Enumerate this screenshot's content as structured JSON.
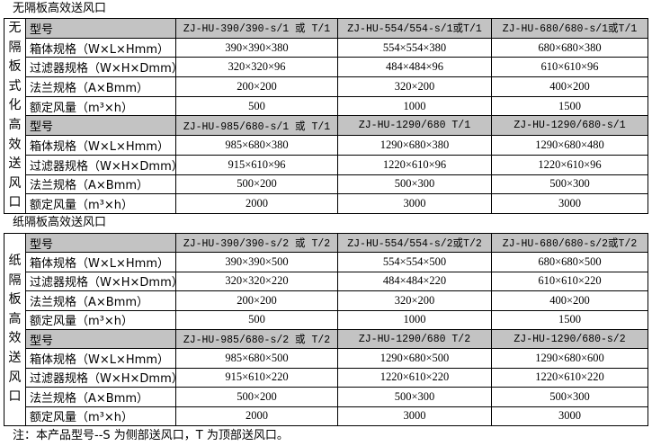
{
  "sections": [
    {
      "title": "无隔板高效送风口",
      "side_label": [
        "无",
        "隔",
        "板",
        "式",
        "化",
        "高",
        "效",
        "送",
        "风",
        "口"
      ],
      "groups": [
        {
          "header_label": "型号",
          "models": [
            "ZJ-HU-390/390-s/1 或 T/1",
            "ZJ-HU-554/554-s/1或T/1",
            "ZJ-HU-680/680-s/1或T/1"
          ],
          "rows": [
            {
              "label": "箱体规格（W×L×Hmm）",
              "values": [
                "390×390×380",
                "554×554×380",
                "680×680×380"
              ]
            },
            {
              "label": "过滤器规格（W×H×Dmm）",
              "values": [
                "320×320×96",
                "484×484×96",
                "610×610×96"
              ]
            },
            {
              "label": "法兰规格（A×Bmm）",
              "values": [
                "200×200",
                "320×200",
                "400×200"
              ]
            },
            {
              "label": "额定风量（m³×h）",
              "values": [
                "500",
                "1000",
                "1500"
              ]
            }
          ]
        },
        {
          "header_label": "型号",
          "models": [
            "ZJ-HU-985/680-s/1 或 T/1",
            "ZJ-HU-1290/680  T/1",
            "ZJ-HU-1290/680-s/1"
          ],
          "rows": [
            {
              "label": "箱体规格（W×L×Hmm）",
              "values": [
                "985×680×380",
                "1290×680×380",
                "1290×680×480"
              ]
            },
            {
              "label": "过滤器规格（W×H×Dmm）",
              "values": [
                "915×610×96",
                "1220×610×96",
                "1220×610×96"
              ]
            },
            {
              "label": "法兰规格（A×Bmm）",
              "values": [
                "500×200",
                "500×300",
                "500×300"
              ]
            },
            {
              "label": "额定风量（m³×h）",
              "values": [
                "2000",
                "3000",
                "3000"
              ]
            }
          ]
        }
      ]
    },
    {
      "title": "纸隔板高效送风口",
      "side_label": [
        "纸",
        "隔",
        "板",
        "高",
        "效",
        "送",
        "风",
        "口"
      ],
      "groups": [
        {
          "header_label": "型号",
          "models": [
            "ZJ-HU-390/390-s/2 或 T/2",
            "ZJ-HU-554/554-s/2或T/2",
            "ZJ-HU-680/680-s/2或T/2"
          ],
          "rows": [
            {
              "label": "箱体规格（W×L×Hmm）",
              "values": [
                "390×390×500",
                "554×554×500",
                "680×680×500"
              ]
            },
            {
              "label": "过滤器规格（W×H×Dmm）",
              "values": [
                "320×320×220",
                "484×484×220",
                "610×610×220"
              ]
            },
            {
              "label": "法兰规格（A×Bmm）",
              "values": [
                "200×200",
                "320×200",
                "400×200"
              ]
            },
            {
              "label": "额定风量（m³×h）",
              "values": [
                "500",
                "1000",
                "1500"
              ]
            }
          ]
        },
        {
          "header_label": "型号",
          "models": [
            "ZJ-HU-985/680-s/2 或 T/2",
            "ZJ-HU-1290/680  T/2",
            "ZJ-HU-1290/680-s/2"
          ],
          "rows": [
            {
              "label": "箱体规格（W×L×Hmm）",
              "values": [
                "985×680×500",
                "1290×680×500",
                "1290×680×600"
              ]
            },
            {
              "label": "过滤器规格（W×H×Dmm）",
              "values": [
                "915×610×220",
                "1220×610×220",
                "1220×610×220"
              ]
            },
            {
              "label": "法兰规格（A×Bmm）",
              "values": [
                "500×200",
                "500×300",
                "500×300"
              ]
            },
            {
              "label": "额定风量（m³×h）",
              "values": [
                "2000",
                "3000",
                "3000"
              ]
            }
          ]
        }
      ]
    }
  ],
  "note": "注：本产品型号--S 为侧部送风口，T 为顶部送风口。",
  "colors": {
    "header_bg": "#c3c3c3",
    "border": "#000000"
  }
}
